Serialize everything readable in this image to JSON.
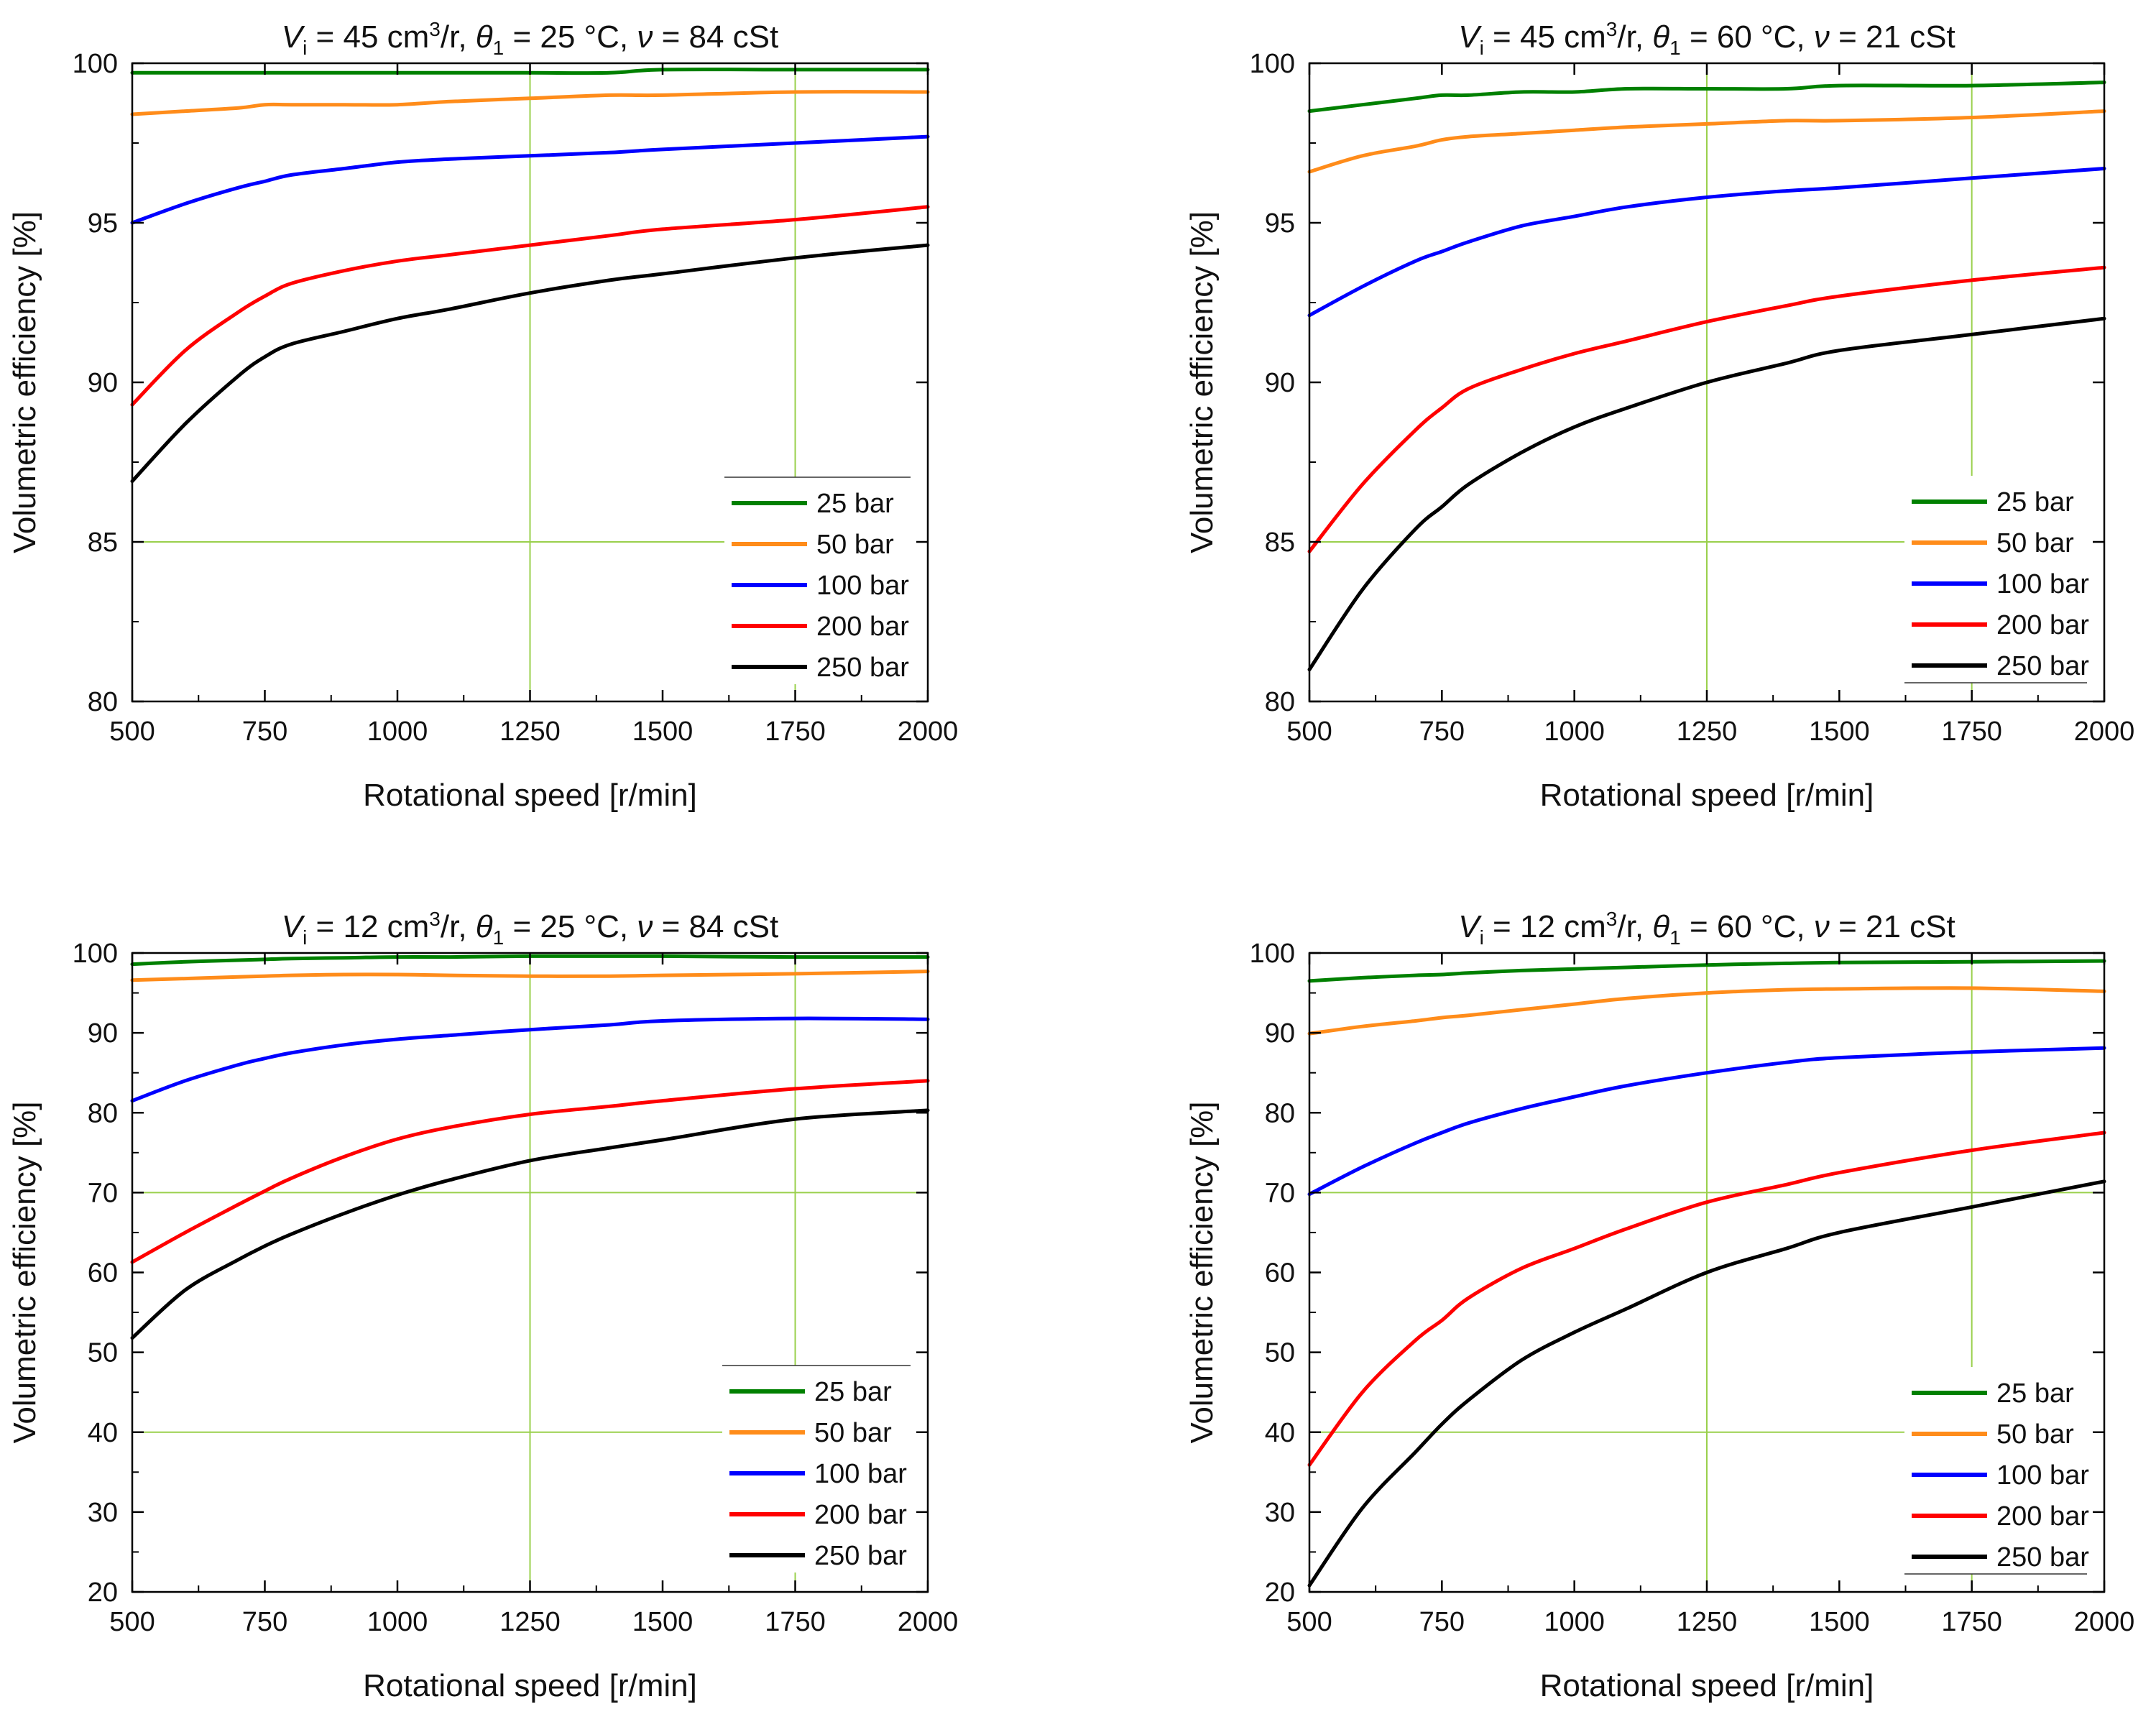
{
  "figure": {
    "panels": [
      {
        "title": {
          "v_sym": "V",
          "v_sub": "i",
          "v_text": " = 45 cm",
          "v_sup": "3",
          "v_unit": "/r, ",
          "theta_sym": "θ",
          "theta_sub": "1",
          "theta_text": " = 25 °C, ",
          "nu_sym": "ν",
          "nu_text": " = 84 cSt"
        },
        "xlabel": "Rotational speed [r/min]",
        "ylabel": "Volumetric efficiency [%]"
      },
      {
        "title": {
          "v_sym": "V",
          "v_sub": "i",
          "v_text": " = 45 cm",
          "v_sup": "3",
          "v_unit": "/r, ",
          "theta_sym": "θ",
          "theta_sub": "1",
          "theta_text": " = 60 °C, ",
          "nu_sym": "ν",
          "nu_text": " = 21 cSt"
        },
        "xlabel": "Rotational speed [r/min]",
        "ylabel": "Volumetric efficiency [%]"
      },
      {
        "title": {
          "v_sym": "V",
          "v_sub": "i",
          "v_text": " = 12 cm",
          "v_sup": "3",
          "v_unit": "/r, ",
          "theta_sym": "θ",
          "theta_sub": "1",
          "theta_text": " = 25 °C, ",
          "nu_sym": "ν",
          "nu_text": " = 84 cSt"
        },
        "xlabel": "Rotational speed [r/min]",
        "ylabel": "Volumetric efficiency [%]"
      },
      {
        "title": {
          "v_sym": "V",
          "v_sub": "i",
          "v_text": " = 12 cm",
          "v_sup": "3",
          "v_unit": "/r, ",
          "theta_sym": "θ",
          "theta_sub": "1",
          "theta_text": " = 60 °C, ",
          "nu_sym": "ν",
          "nu_text": " = 21 cSt"
        },
        "xlabel": "Rotational speed [r/min]",
        "ylabel": "Volumetric efficiency [%]"
      }
    ]
  },
  "chart_data": [
    {
      "type": "line",
      "title": "Vi = 45 cm3/r, θ1 = 25 °C, ν = 84 cSt",
      "xlabel": "Rotational speed [r/min]",
      "ylabel": "Volumetric efficiency [%]",
      "xlim": [
        500,
        2000
      ],
      "ylim": [
        80,
        100
      ],
      "xticks": [
        500,
        750,
        1000,
        1250,
        1500,
        1750,
        2000
      ],
      "yticks": [
        80,
        85,
        90,
        95,
        100
      ],
      "gridlines_x": [
        1250,
        1750
      ],
      "gridlines_y": [
        85
      ],
      "legend_position": "bottom-right",
      "x": [
        500,
        600,
        700,
        750,
        800,
        900,
        1000,
        1100,
        1250,
        1400,
        1500,
        1750,
        2000
      ],
      "series": [
        {
          "name": "25 bar",
          "color": "#008000",
          "values": [
            99.7,
            99.7,
            99.7,
            99.7,
            99.7,
            99.7,
            99.7,
            99.7,
            99.7,
            99.7,
            99.8,
            99.8,
            99.8
          ]
        },
        {
          "name": "50 bar",
          "color": "#ff8c1a",
          "values": [
            98.4,
            98.5,
            98.6,
            98.7,
            98.7,
            98.7,
            98.7,
            98.8,
            98.9,
            99.0,
            99.0,
            99.1,
            99.1
          ]
        },
        {
          "name": "100 bar",
          "color": "#0000ff",
          "values": [
            95.0,
            95.6,
            96.1,
            96.3,
            96.5,
            96.7,
            96.9,
            97.0,
            97.1,
            97.2,
            97.3,
            97.5,
            97.7
          ]
        },
        {
          "name": "200 bar",
          "color": "#ff0000",
          "values": [
            89.3,
            91.0,
            92.2,
            92.7,
            93.1,
            93.5,
            93.8,
            94.0,
            94.3,
            94.6,
            94.8,
            95.1,
            95.5
          ]
        },
        {
          "name": "250 bar",
          "color": "#000000",
          "values": [
            86.9,
            88.7,
            90.2,
            90.8,
            91.2,
            91.6,
            92.0,
            92.3,
            92.8,
            93.2,
            93.4,
            93.9,
            94.3
          ]
        }
      ]
    },
    {
      "type": "line",
      "title": "Vi = 45 cm3/r, θ1 = 60 °C, ν = 21 cSt",
      "xlabel": "Rotational speed [r/min]",
      "ylabel": "Volumetric efficiency [%]",
      "xlim": [
        500,
        2000
      ],
      "ylim": [
        80,
        100
      ],
      "xticks": [
        500,
        750,
        1000,
        1250,
        1500,
        1750,
        2000
      ],
      "yticks": [
        80,
        85,
        90,
        95,
        100
      ],
      "gridlines_x": [
        1250,
        1750
      ],
      "gridlines_y": [
        85
      ],
      "legend_position": "bottom-right",
      "x": [
        500,
        600,
        700,
        750,
        800,
        900,
        1000,
        1100,
        1250,
        1400,
        1500,
        1750,
        2000
      ],
      "series": [
        {
          "name": "25 bar",
          "color": "#008000",
          "values": [
            98.5,
            98.7,
            98.9,
            99.0,
            99.0,
            99.1,
            99.1,
            99.2,
            99.2,
            99.2,
            99.3,
            99.3,
            99.4
          ]
        },
        {
          "name": "50 bar",
          "color": "#ff8c1a",
          "values": [
            96.6,
            97.1,
            97.4,
            97.6,
            97.7,
            97.8,
            97.9,
            98.0,
            98.1,
            98.2,
            98.2,
            98.3,
            98.5
          ]
        },
        {
          "name": "100 bar",
          "color": "#0000ff",
          "values": [
            92.1,
            93.0,
            93.8,
            94.1,
            94.4,
            94.9,
            95.2,
            95.5,
            95.8,
            96.0,
            96.1,
            96.4,
            96.7
          ]
        },
        {
          "name": "200 bar",
          "color": "#ff0000",
          "values": [
            84.7,
            86.8,
            88.5,
            89.2,
            89.8,
            90.4,
            90.9,
            91.3,
            91.9,
            92.4,
            92.7,
            93.2,
            93.6
          ]
        },
        {
          "name": "250 bar",
          "color": "#000000",
          "values": [
            81.0,
            83.5,
            85.4,
            86.1,
            86.8,
            87.8,
            88.6,
            89.2,
            90.0,
            90.6,
            91.0,
            91.5,
            92.0
          ]
        }
      ]
    },
    {
      "type": "line",
      "title": "Vi = 12 cm3/r, θ1 = 25 °C, ν = 84 cSt",
      "xlabel": "Rotational speed [r/min]",
      "ylabel": "Volumetric efficiency [%]",
      "xlim": [
        500,
        2000
      ],
      "ylim": [
        20,
        100
      ],
      "xticks": [
        500,
        750,
        1000,
        1250,
        1500,
        1750,
        2000
      ],
      "yticks": [
        20,
        30,
        40,
        50,
        60,
        70,
        80,
        90,
        100
      ],
      "gridlines_x": [
        1250,
        1750
      ],
      "gridlines_y": [
        40,
        70
      ],
      "legend_position": "bottom-right",
      "x": [
        500,
        600,
        700,
        750,
        800,
        900,
        1000,
        1100,
        1250,
        1400,
        1500,
        1750,
        2000
      ],
      "series": [
        {
          "name": "25 bar",
          "color": "#008000",
          "values": [
            98.6,
            98.9,
            99.1,
            99.2,
            99.3,
            99.4,
            99.5,
            99.5,
            99.6,
            99.6,
            99.6,
            99.5,
            99.5
          ]
        },
        {
          "name": "50 bar",
          "color": "#ff8c1a",
          "values": [
            96.6,
            96.8,
            97.0,
            97.1,
            97.2,
            97.3,
            97.3,
            97.2,
            97.1,
            97.1,
            97.2,
            97.4,
            97.7
          ]
        },
        {
          "name": "100 bar",
          "color": "#0000ff",
          "values": [
            81.5,
            84.0,
            86.0,
            86.8,
            87.5,
            88.5,
            89.2,
            89.7,
            90.4,
            91.0,
            91.5,
            91.8,
            91.7
          ]
        },
        {
          "name": "200 bar",
          "color": "#ff0000",
          "values": [
            61.3,
            65.0,
            68.5,
            70.2,
            71.8,
            74.5,
            76.7,
            78.2,
            79.8,
            80.8,
            81.5,
            83.0,
            84.0
          ]
        },
        {
          "name": "250 bar",
          "color": "#000000",
          "values": [
            51.8,
            57.8,
            61.6,
            63.3,
            64.8,
            67.4,
            69.7,
            71.6,
            74.0,
            75.6,
            76.6,
            79.2,
            80.3
          ]
        }
      ]
    },
    {
      "type": "line",
      "title": "Vi = 12 cm3/r, θ1 = 60 °C, ν = 21 cSt",
      "xlabel": "Rotational speed [r/min]",
      "ylabel": "Volumetric efficiency [%]",
      "xlim": [
        500,
        2000
      ],
      "ylim": [
        20,
        100
      ],
      "xticks": [
        500,
        750,
        1000,
        1250,
        1500,
        1750,
        2000
      ],
      "yticks": [
        20,
        30,
        40,
        50,
        60,
        70,
        80,
        90,
        100
      ],
      "gridlines_x": [
        1250,
        1750
      ],
      "gridlines_y": [
        40,
        70
      ],
      "legend_position": "bottom-right",
      "x": [
        500,
        600,
        700,
        750,
        800,
        900,
        1000,
        1100,
        1250,
        1400,
        1500,
        1750,
        2000
      ],
      "series": [
        {
          "name": "25 bar",
          "color": "#008000",
          "values": [
            96.5,
            96.9,
            97.2,
            97.3,
            97.5,
            97.8,
            98.0,
            98.2,
            98.5,
            98.7,
            98.8,
            98.9,
            99.0
          ]
        },
        {
          "name": "50 bar",
          "color": "#ff8c1a",
          "values": [
            89.9,
            90.8,
            91.5,
            91.9,
            92.2,
            92.9,
            93.6,
            94.3,
            95.0,
            95.4,
            95.5,
            95.6,
            95.2
          ]
        },
        {
          "name": "100 bar",
          "color": "#0000ff",
          "values": [
            69.8,
            73.2,
            76.2,
            77.5,
            78.7,
            80.5,
            82.0,
            83.4,
            85.0,
            86.3,
            86.9,
            87.6,
            88.1
          ]
        },
        {
          "name": "200 bar",
          "color": "#ff0000",
          "values": [
            35.9,
            45.0,
            51.5,
            54.0,
            56.8,
            60.5,
            63.0,
            65.5,
            68.8,
            71.0,
            72.5,
            75.3,
            77.5
          ]
        },
        {
          "name": "250 bar",
          "color": "#000000",
          "values": [
            20.8,
            30.5,
            37.5,
            41.0,
            44.0,
            49.0,
            52.5,
            55.5,
            60.0,
            63.0,
            65.0,
            68.2,
            71.4
          ]
        }
      ]
    }
  ]
}
